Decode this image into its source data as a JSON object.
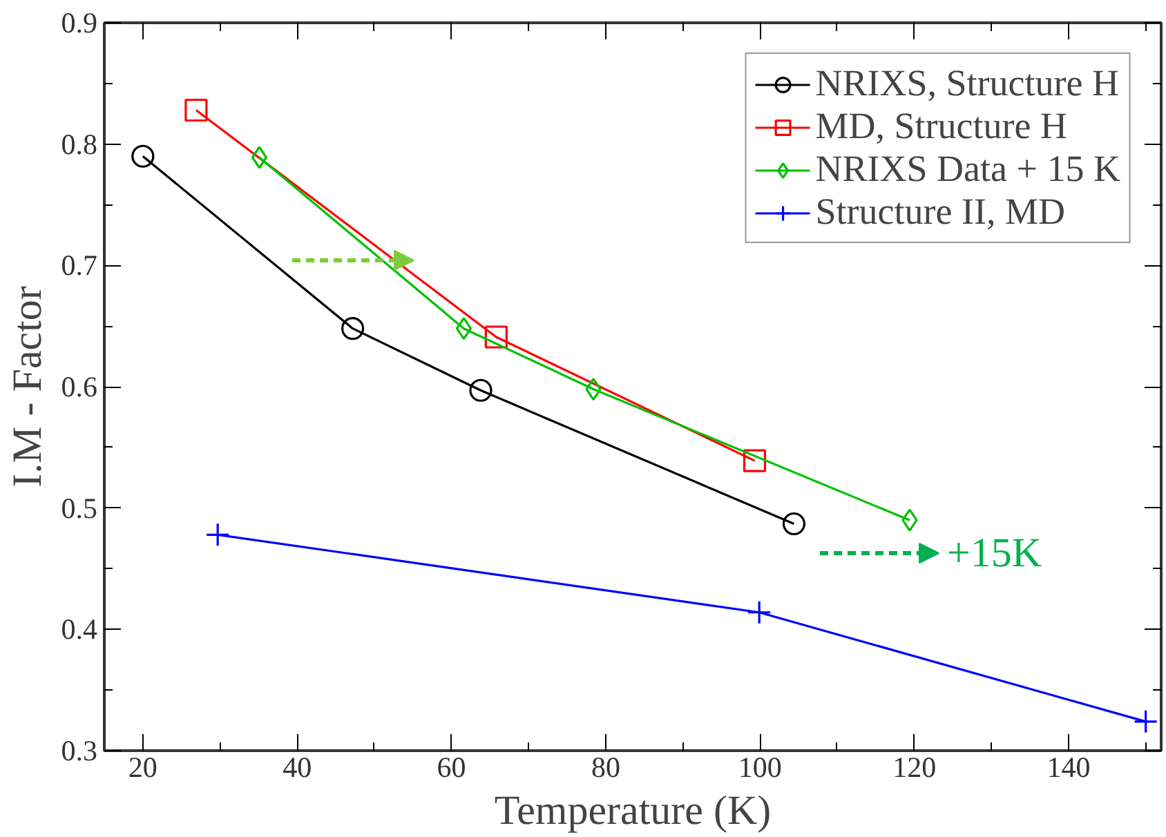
{
  "chart_data": {
    "type": "line",
    "xlabel": "Temperature (K)",
    "ylabel": "I.M - Factor",
    "xlim": [
      15,
      152
    ],
    "ylim": [
      0.3,
      0.9
    ],
    "xticks": [
      20,
      {
        "value": 30,
        "label": null
      },
      40,
      {
        "value": 50,
        "label": null
      },
      60,
      {
        "value": 70,
        "label": null
      },
      80,
      {
        "value": 90,
        "label": null
      },
      100,
      {
        "value": 110,
        "label": null
      },
      120,
      {
        "value": 130,
        "label": null
      },
      140,
      {
        "value": 150,
        "label": null
      }
    ],
    "yticks": [
      0.3,
      {
        "value": 0.35,
        "label": null
      },
      0.4,
      {
        "value": 0.45,
        "label": null
      },
      0.5,
      {
        "value": 0.55,
        "label": null
      },
      0.6,
      {
        "value": 0.65,
        "label": null
      },
      0.7,
      {
        "value": 0.75,
        "label": null
      },
      0.8,
      {
        "value": 0.85,
        "label": null
      },
      0.9
    ],
    "grid": false,
    "legend": "top right",
    "line_style": "solid",
    "series": [
      {
        "name": "NRIXS, Structure H",
        "color": "#000000",
        "marker": "circle",
        "x": [
          20,
          47.2,
          63.8,
          104.4
        ],
        "values": [
          0.79,
          0.648,
          0.597,
          0.487
        ]
      },
      {
        "name": "MD, Structure H",
        "color": "#ff0000",
        "marker": "square",
        "x": [
          26.9,
          65.8,
          99.3
        ],
        "values": [
          0.828,
          0.641,
          0.539
        ]
      },
      {
        "name": "NRIXS Data + 15 K",
        "color": "#00c000",
        "marker": "diamond",
        "x": [
          35.1,
          61.6,
          78.4,
          119.4
        ],
        "values": [
          0.789,
          0.648,
          0.598,
          0.49
        ]
      },
      {
        "name": "Structure II, MD",
        "color": "#0000ff",
        "marker": "cross",
        "x": [
          29.7,
          99.9,
          150
        ],
        "values": [
          0.478,
          0.414,
          0.324
        ]
      }
    ],
    "annotations": [
      "+15K"
    ]
  }
}
